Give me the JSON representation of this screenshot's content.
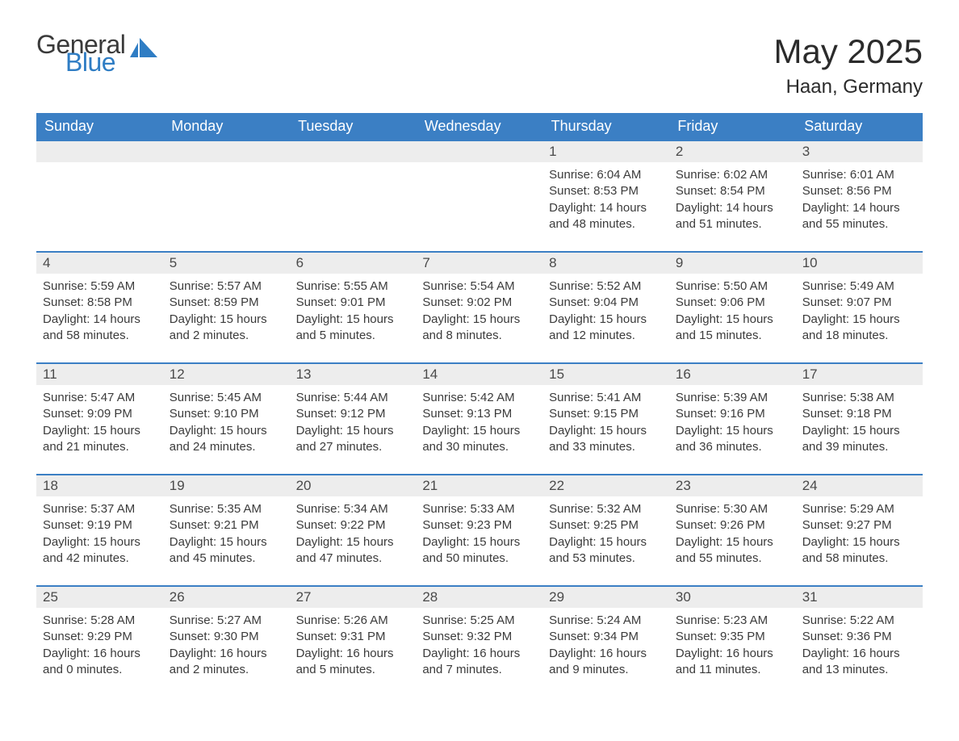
{
  "logo": {
    "text1": "General",
    "text2": "Blue",
    "icon_color": "#2f7dc4"
  },
  "title": "May 2025",
  "location": "Haan, Germany",
  "colors": {
    "header_bg": "#3b7fc4",
    "header_text": "#ffffff",
    "daynum_bg": "#ededed",
    "border": "#3b7fc4",
    "body_text": "#3b3b3b",
    "page_bg": "#ffffff"
  },
  "typography": {
    "title_fontsize": 42,
    "location_fontsize": 24,
    "dow_fontsize": 18,
    "daynum_fontsize": 17,
    "content_fontsize": 15
  },
  "day_labels": [
    "Sunday",
    "Monday",
    "Tuesday",
    "Wednesday",
    "Thursday",
    "Friday",
    "Saturday"
  ],
  "weeks": [
    [
      {
        "empty": true
      },
      {
        "empty": true
      },
      {
        "empty": true
      },
      {
        "empty": true
      },
      {
        "num": "1",
        "sunrise": "Sunrise: 6:04 AM",
        "sunset": "Sunset: 8:53 PM",
        "daylight": "Daylight: 14 hours and 48 minutes."
      },
      {
        "num": "2",
        "sunrise": "Sunrise: 6:02 AM",
        "sunset": "Sunset: 8:54 PM",
        "daylight": "Daylight: 14 hours and 51 minutes."
      },
      {
        "num": "3",
        "sunrise": "Sunrise: 6:01 AM",
        "sunset": "Sunset: 8:56 PM",
        "daylight": "Daylight: 14 hours and 55 minutes."
      }
    ],
    [
      {
        "num": "4",
        "sunrise": "Sunrise: 5:59 AM",
        "sunset": "Sunset: 8:58 PM",
        "daylight": "Daylight: 14 hours and 58 minutes."
      },
      {
        "num": "5",
        "sunrise": "Sunrise: 5:57 AM",
        "sunset": "Sunset: 8:59 PM",
        "daylight": "Daylight: 15 hours and 2 minutes."
      },
      {
        "num": "6",
        "sunrise": "Sunrise: 5:55 AM",
        "sunset": "Sunset: 9:01 PM",
        "daylight": "Daylight: 15 hours and 5 minutes."
      },
      {
        "num": "7",
        "sunrise": "Sunrise: 5:54 AM",
        "sunset": "Sunset: 9:02 PM",
        "daylight": "Daylight: 15 hours and 8 minutes."
      },
      {
        "num": "8",
        "sunrise": "Sunrise: 5:52 AM",
        "sunset": "Sunset: 9:04 PM",
        "daylight": "Daylight: 15 hours and 12 minutes."
      },
      {
        "num": "9",
        "sunrise": "Sunrise: 5:50 AM",
        "sunset": "Sunset: 9:06 PM",
        "daylight": "Daylight: 15 hours and 15 minutes."
      },
      {
        "num": "10",
        "sunrise": "Sunrise: 5:49 AM",
        "sunset": "Sunset: 9:07 PM",
        "daylight": "Daylight: 15 hours and 18 minutes."
      }
    ],
    [
      {
        "num": "11",
        "sunrise": "Sunrise: 5:47 AM",
        "sunset": "Sunset: 9:09 PM",
        "daylight": "Daylight: 15 hours and 21 minutes."
      },
      {
        "num": "12",
        "sunrise": "Sunrise: 5:45 AM",
        "sunset": "Sunset: 9:10 PM",
        "daylight": "Daylight: 15 hours and 24 minutes."
      },
      {
        "num": "13",
        "sunrise": "Sunrise: 5:44 AM",
        "sunset": "Sunset: 9:12 PM",
        "daylight": "Daylight: 15 hours and 27 minutes."
      },
      {
        "num": "14",
        "sunrise": "Sunrise: 5:42 AM",
        "sunset": "Sunset: 9:13 PM",
        "daylight": "Daylight: 15 hours and 30 minutes."
      },
      {
        "num": "15",
        "sunrise": "Sunrise: 5:41 AM",
        "sunset": "Sunset: 9:15 PM",
        "daylight": "Daylight: 15 hours and 33 minutes."
      },
      {
        "num": "16",
        "sunrise": "Sunrise: 5:39 AM",
        "sunset": "Sunset: 9:16 PM",
        "daylight": "Daylight: 15 hours and 36 minutes."
      },
      {
        "num": "17",
        "sunrise": "Sunrise: 5:38 AM",
        "sunset": "Sunset: 9:18 PM",
        "daylight": "Daylight: 15 hours and 39 minutes."
      }
    ],
    [
      {
        "num": "18",
        "sunrise": "Sunrise: 5:37 AM",
        "sunset": "Sunset: 9:19 PM",
        "daylight": "Daylight: 15 hours and 42 minutes."
      },
      {
        "num": "19",
        "sunrise": "Sunrise: 5:35 AM",
        "sunset": "Sunset: 9:21 PM",
        "daylight": "Daylight: 15 hours and 45 minutes."
      },
      {
        "num": "20",
        "sunrise": "Sunrise: 5:34 AM",
        "sunset": "Sunset: 9:22 PM",
        "daylight": "Daylight: 15 hours and 47 minutes."
      },
      {
        "num": "21",
        "sunrise": "Sunrise: 5:33 AM",
        "sunset": "Sunset: 9:23 PM",
        "daylight": "Daylight: 15 hours and 50 minutes."
      },
      {
        "num": "22",
        "sunrise": "Sunrise: 5:32 AM",
        "sunset": "Sunset: 9:25 PM",
        "daylight": "Daylight: 15 hours and 53 minutes."
      },
      {
        "num": "23",
        "sunrise": "Sunrise: 5:30 AM",
        "sunset": "Sunset: 9:26 PM",
        "daylight": "Daylight: 15 hours and 55 minutes."
      },
      {
        "num": "24",
        "sunrise": "Sunrise: 5:29 AM",
        "sunset": "Sunset: 9:27 PM",
        "daylight": "Daylight: 15 hours and 58 minutes."
      }
    ],
    [
      {
        "num": "25",
        "sunrise": "Sunrise: 5:28 AM",
        "sunset": "Sunset: 9:29 PM",
        "daylight": "Daylight: 16 hours and 0 minutes."
      },
      {
        "num": "26",
        "sunrise": "Sunrise: 5:27 AM",
        "sunset": "Sunset: 9:30 PM",
        "daylight": "Daylight: 16 hours and 2 minutes."
      },
      {
        "num": "27",
        "sunrise": "Sunrise: 5:26 AM",
        "sunset": "Sunset: 9:31 PM",
        "daylight": "Daylight: 16 hours and 5 minutes."
      },
      {
        "num": "28",
        "sunrise": "Sunrise: 5:25 AM",
        "sunset": "Sunset: 9:32 PM",
        "daylight": "Daylight: 16 hours and 7 minutes."
      },
      {
        "num": "29",
        "sunrise": "Sunrise: 5:24 AM",
        "sunset": "Sunset: 9:34 PM",
        "daylight": "Daylight: 16 hours and 9 minutes."
      },
      {
        "num": "30",
        "sunrise": "Sunrise: 5:23 AM",
        "sunset": "Sunset: 9:35 PM",
        "daylight": "Daylight: 16 hours and 11 minutes."
      },
      {
        "num": "31",
        "sunrise": "Sunrise: 5:22 AM",
        "sunset": "Sunset: 9:36 PM",
        "daylight": "Daylight: 16 hours and 13 minutes."
      }
    ]
  ]
}
